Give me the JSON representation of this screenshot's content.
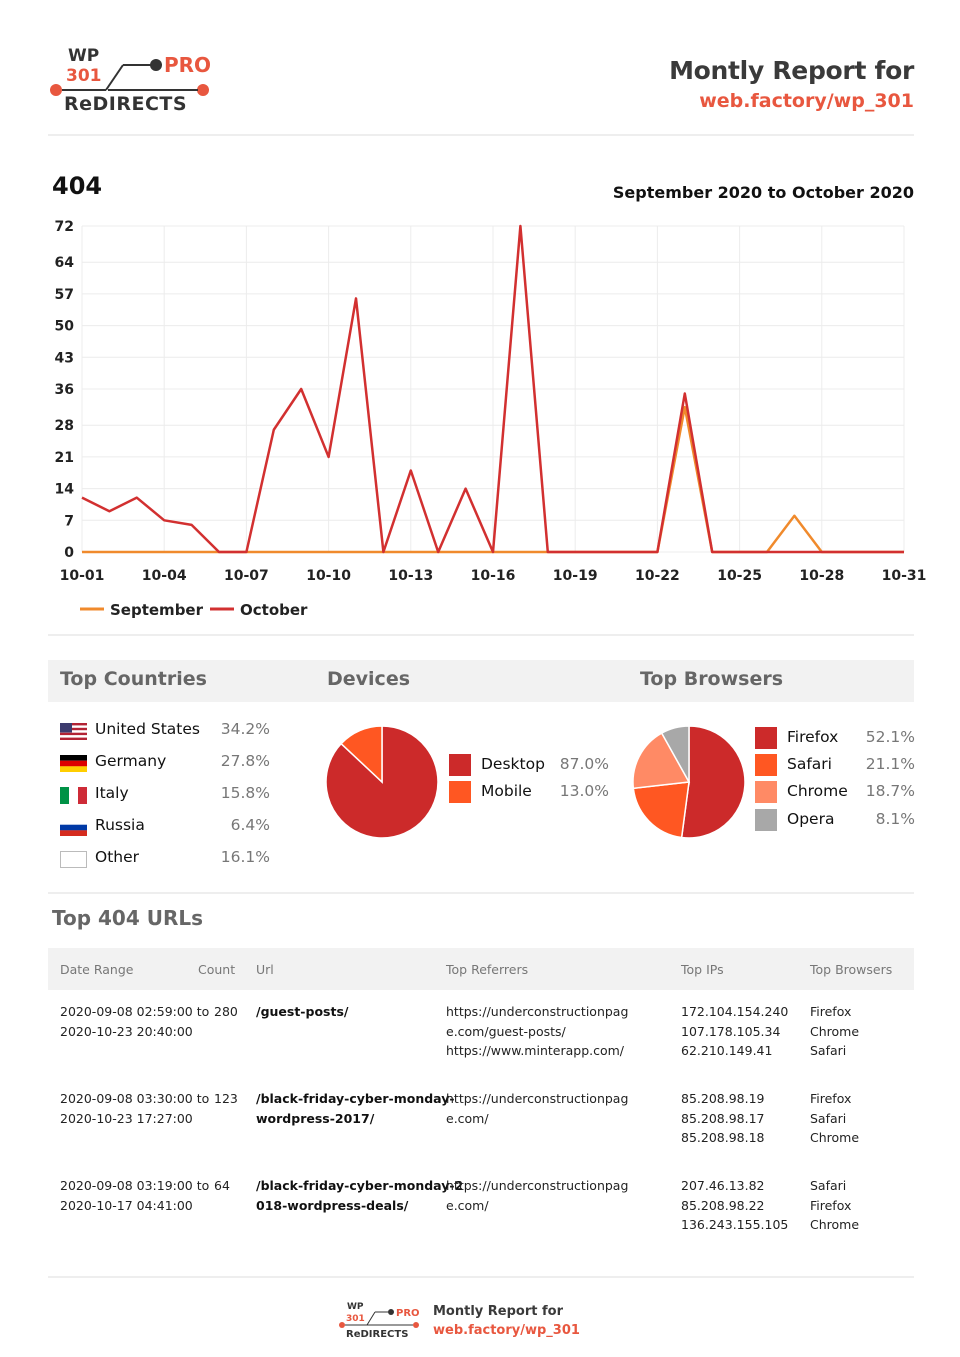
{
  "header": {
    "logo": {
      "wp": "WP",
      "n301": "301",
      "pro": "PRO",
      "redirects": "ReDIRECTS"
    },
    "title": "Montly Report for",
    "site": "web.factory/wp_301"
  },
  "chart": {
    "title": "404",
    "range": "September 2020 to October 2020"
  },
  "chart_data": {
    "type": "line",
    "x": [
      "10-01",
      "10-02",
      "10-03",
      "10-04",
      "10-05",
      "10-06",
      "10-07",
      "10-08",
      "10-09",
      "10-10",
      "10-11",
      "10-12",
      "10-13",
      "10-14",
      "10-15",
      "10-16",
      "10-17",
      "10-18",
      "10-19",
      "10-20",
      "10-21",
      "10-22",
      "10-23",
      "10-24",
      "10-25",
      "10-26",
      "10-27",
      "10-28",
      "10-29",
      "10-30",
      "10-31"
    ],
    "xticks": [
      "10-01",
      "10-04",
      "10-07",
      "10-10",
      "10-13",
      "10-16",
      "10-19",
      "10-22",
      "10-25",
      "10-28",
      "10-31"
    ],
    "yticks": [
      0,
      7,
      14,
      21,
      28,
      36,
      43,
      50,
      57,
      64,
      72
    ],
    "ylim": [
      0,
      72
    ],
    "series": [
      {
        "name": "September",
        "color": "#f08a2c",
        "values": [
          0,
          0,
          0,
          0,
          0,
          0,
          0,
          0,
          0,
          0,
          0,
          0,
          0,
          0,
          0,
          0,
          0,
          0,
          0,
          0,
          0,
          0,
          32,
          0,
          0,
          0,
          8,
          0,
          0,
          0,
          0
        ]
      },
      {
        "name": "October",
        "color": "#d23030",
        "values": [
          12,
          9,
          12,
          7,
          6,
          0,
          0,
          27,
          36,
          21,
          56,
          0,
          18,
          0,
          14,
          0,
          72,
          0,
          0,
          0,
          0,
          0,
          35,
          0,
          0,
          0,
          0,
          0,
          0,
          0,
          0
        ]
      }
    ],
    "legend": "bottom-left",
    "grid": true
  },
  "sections": {
    "countries_title": "Top Countries",
    "devices_title": "Devices",
    "browsers_title": "Top Browsers"
  },
  "countries": [
    {
      "name": "United States",
      "pct": "34.2%",
      "flag": "us-flag"
    },
    {
      "name": "Germany",
      "pct": "27.8%",
      "flag": "de-flag"
    },
    {
      "name": "Italy",
      "pct": "15.8%",
      "flag": "it-flag"
    },
    {
      "name": "Russia",
      "pct": "6.4%",
      "flag": "ru-flag"
    },
    {
      "name": "Other",
      "pct": "16.1%",
      "flag": "blank-flag"
    }
  ],
  "devices": [
    {
      "name": "Desktop",
      "pct": "87.0%",
      "value": 87.0,
      "color": "#cc2a2a"
    },
    {
      "name": "Mobile",
      "pct": "13.0%",
      "value": 13.0,
      "color": "#ff5722"
    }
  ],
  "browsers": [
    {
      "name": "Firefox",
      "pct": "52.1%",
      "value": 52.1,
      "color": "#cc2a2a"
    },
    {
      "name": "Safari",
      "pct": "21.1%",
      "value": 21.1,
      "color": "#ff5722"
    },
    {
      "name": "Chrome",
      "pct": "18.7%",
      "value": 18.7,
      "color": "#ff8a65"
    },
    {
      "name": "Opera",
      "pct": "8.1%",
      "value": 8.1,
      "color": "#a8a8a8"
    }
  ],
  "urls": {
    "title": "Top 404 URLs",
    "columns": [
      "Date Range",
      "Count",
      "Url",
      "Top Referrers",
      "Top IPs",
      "Top Browsers"
    ],
    "rows": [
      {
        "date": "2020-09-08 02:59:00 to\n2020-10-23 20:40:00",
        "count": "280",
        "url": "/guest-posts/",
        "referrers": "https://underconstructionpag\ne.com/guest-posts/\nhttps://www.minterapp.com/",
        "ips": "172.104.154.240\n107.178.105.34\n62.210.149.41",
        "browsers": "Firefox\nChrome\nSafari"
      },
      {
        "date": "2020-09-08 03:30:00 to\n2020-10-23 17:27:00",
        "count": "123",
        "url": "/black-friday-cyber-monday-\nwordpress-2017/",
        "referrers": "https://underconstructionpag\ne.com/",
        "ips": "85.208.98.19\n85.208.98.17\n85.208.98.18",
        "browsers": "Firefox\nSafari\nChrome"
      },
      {
        "date": "2020-09-08 03:19:00 to\n2020-10-17 04:41:00",
        "count": "64",
        "url": "/black-friday-cyber-monday-2\n018-wordpress-deals/",
        "referrers": "https://underconstructionpag\ne.com/",
        "ips": "207.46.13.82\n85.208.98.22\n136.243.155.105",
        "browsers": "Safari\nFirefox\nChrome"
      }
    ]
  },
  "footer": {
    "logo": {
      "wp": "WP",
      "n301": "301",
      "pro": "PRO",
      "redirects": "ReDIRECTS"
    },
    "title": "Montly Report for",
    "site": "web.factory/wp_301"
  }
}
